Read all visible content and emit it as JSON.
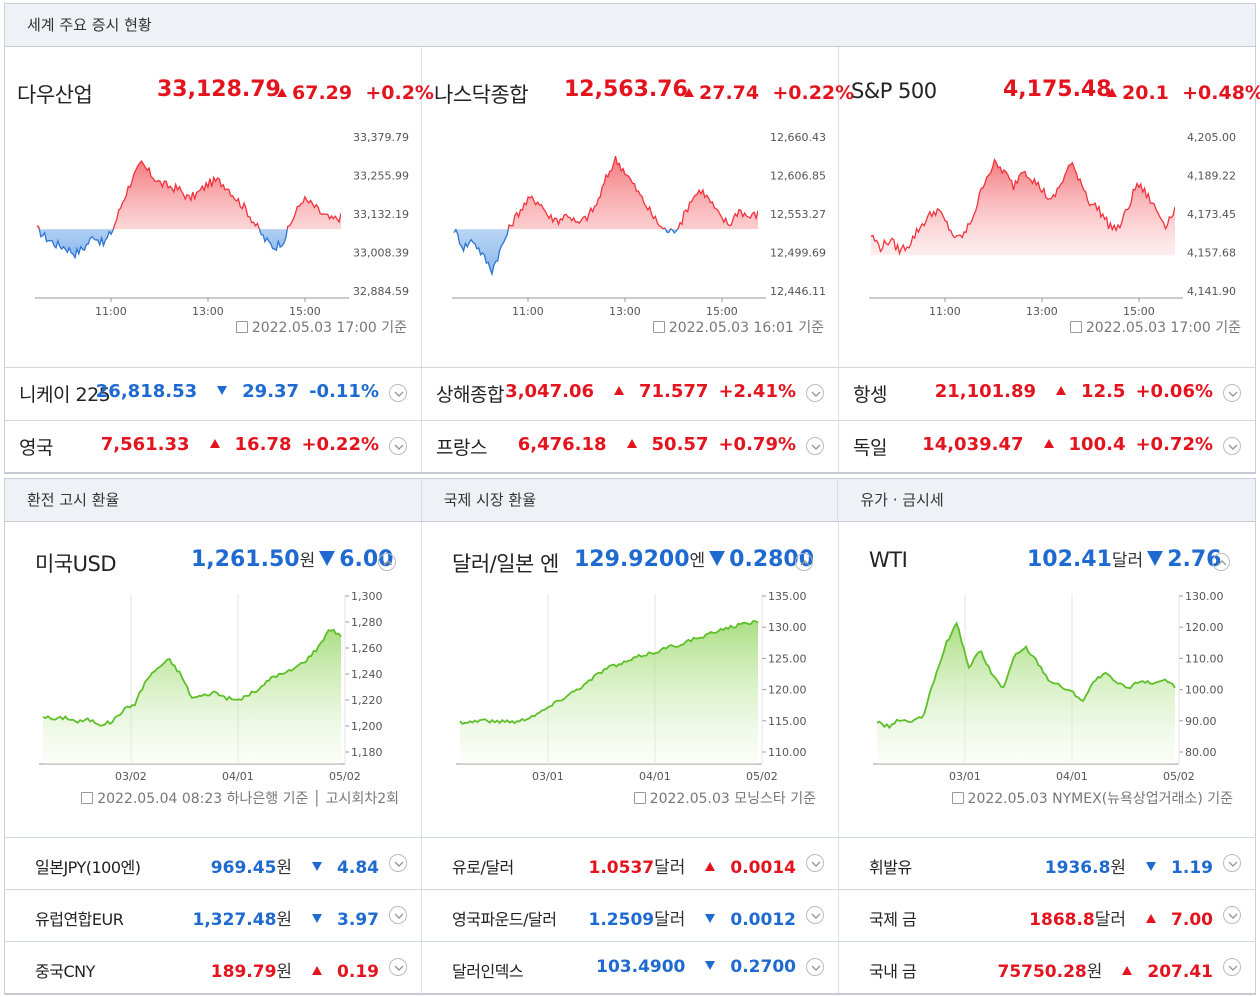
{
  "indices_header": "세계 주요 증시 현황",
  "indices": [
    {
      "name": "다우산업",
      "value": "33,128.79",
      "change": "67.29",
      "pct": "+0.2%",
      "yticks": [
        "33,379.79",
        "33,255.99",
        "33,132.19",
        "33,008.39",
        "32,884.59"
      ],
      "xticks": [
        "11:00",
        "13:00",
        "15:00"
      ],
      "stamp": "2022.05.03 17:00 기준"
    },
    {
      "name": "나스닥종합",
      "value": "12,563.76",
      "change": "27.74",
      "pct": "+0.22%",
      "yticks": [
        "12,660.43",
        "12,606.85",
        "12,553.27",
        "12,499.69",
        "12,446.11"
      ],
      "xticks": [
        "11:00",
        "13:00",
        "15:00"
      ],
      "stamp": "2022.05.03 16:01 기준"
    },
    {
      "name": "S&P 500",
      "value": "4,175.48",
      "change": "20.1",
      "pct": "+0.48%",
      "yticks": [
        "4,205.00",
        "4,189.22",
        "4,173.45",
        "4,157.68",
        "4,141.90"
      ],
      "xticks": [
        "11:00",
        "13:00",
        "15:00"
      ],
      "stamp": "2022.05.03 17:00 기준"
    }
  ],
  "index_rows": [
    [
      {
        "name": "니케이 225",
        "value": "26,818.53",
        "change": "29.37",
        "pct": "-0.11%",
        "dir": "down"
      },
      {
        "name": "상해종합",
        "value": "3,047.06",
        "change": "71.577",
        "pct": "+2.41%",
        "dir": "up"
      },
      {
        "name": "항셍",
        "value": "21,101.89",
        "change": "12.5",
        "pct": "+0.06%",
        "dir": "up"
      }
    ],
    [
      {
        "name": "영국",
        "value": "7,561.33",
        "change": "16.78",
        "pct": "+0.22%",
        "dir": "up"
      },
      {
        "name": "프랑스",
        "value": "6,476.18",
        "change": "50.57",
        "pct": "+0.79%",
        "dir": "up"
      },
      {
        "name": "독일",
        "value": "14,039.47",
        "change": "100.4",
        "pct": "+0.72%",
        "dir": "up"
      }
    ]
  ],
  "fx_headers": [
    "환전 고시 환율",
    "국제 시장 환율",
    "유가 · 금시세"
  ],
  "fx": [
    {
      "name": "미국USD",
      "value": "1,261.50",
      "unit": "원",
      "change": "6.00",
      "yticks": [
        "1,300",
        "1,280",
        "1,260",
        "1,240",
        "1,220",
        "1,200",
        "1,180"
      ],
      "xticks": [
        "03/02",
        "04/01",
        "05/02"
      ],
      "stamp": "2022.05.04 08:23 하나은행 기준 │ 고시회차2회"
    },
    {
      "name": "달러/일본 엔",
      "value": "129.9200",
      "unit": "엔",
      "change": "0.2800",
      "yticks": [
        "135.00",
        "130.00",
        "125.00",
        "120.00",
        "115.00",
        "110.00"
      ],
      "xticks": [
        "03/01",
        "04/01",
        "05/02"
      ],
      "stamp": "2022.05.03 모닝스타 기준"
    },
    {
      "name": "WTI",
      "value": "102.41",
      "unit": "달러",
      "change": "2.76",
      "yticks": [
        "130.00",
        "120.00",
        "110.00",
        "100.00",
        "90.00",
        "80.00"
      ],
      "xticks": [
        "03/01",
        "04/01",
        "05/02"
      ],
      "stamp": "2022.05.03 NYMEX(뉴욕상업거래소) 기준"
    }
  ],
  "fx_rows": [
    [
      {
        "name": "일본JPY(100엔)",
        "value": "969.45",
        "unit": "원",
        "change": "4.84",
        "dir": "down"
      },
      {
        "name": "유로/달러",
        "value": "1.0537",
        "unit": "달러",
        "change": "0.0014",
        "dir": "up"
      },
      {
        "name": "휘발유",
        "value": "1936.8",
        "unit": "원",
        "change": "1.19",
        "dir": "down"
      }
    ],
    [
      {
        "name": "유럽연합EUR",
        "value": "1,327.48",
        "unit": "원",
        "change": "3.97",
        "dir": "down"
      },
      {
        "name": "영국파운드/달러",
        "value": "1.2509",
        "unit": "달러",
        "change": "0.0012",
        "dir": "down"
      },
      {
        "name": "국제 금",
        "value": "1868.8",
        "unit": "달러",
        "change": "7.00",
        "dir": "up"
      }
    ],
    [
      {
        "name": "중국CNY",
        "value": "189.79",
        "unit": "원",
        "change": "0.19",
        "dir": "up"
      },
      {
        "name": "달러인덱스",
        "value": "103.4900",
        "unit": "",
        "change": "0.2700",
        "dir": "down"
      },
      {
        "name": "국내 금",
        "value": "75750.28",
        "unit": "원",
        "change": "207.41",
        "dir": "up"
      }
    ]
  ],
  "colors": {
    "up": "#e4141f",
    "down": "#1f6ad0",
    "green": "#5fbf2a"
  }
}
